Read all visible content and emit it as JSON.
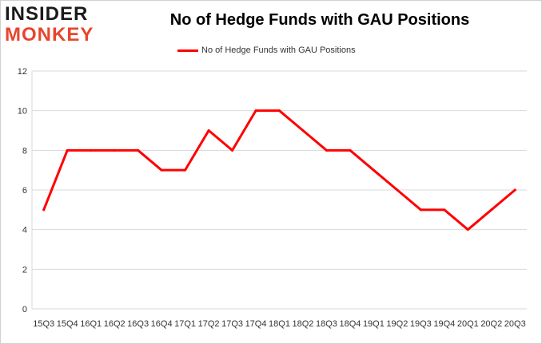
{
  "logo": {
    "line1": "INSIDER",
    "line2": "MONKEY"
  },
  "chart_data": {
    "type": "line",
    "title": "No of Hedge Funds with GAU Positions",
    "xlabel": "",
    "ylabel": "",
    "legend_position": "top-center",
    "grid": true,
    "ylim": [
      0,
      12
    ],
    "yticks": [
      0,
      2,
      4,
      6,
      8,
      10,
      12
    ],
    "categories": [
      "15Q3",
      "15Q4",
      "16Q1",
      "16Q2",
      "16Q3",
      "16Q4",
      "17Q1",
      "17Q2",
      "17Q3",
      "17Q4",
      "18Q1",
      "18Q2",
      "18Q3",
      "18Q4",
      "19Q1",
      "19Q2",
      "19Q3",
      "19Q4",
      "20Q1",
      "20Q2",
      "20Q3"
    ],
    "series": [
      {
        "name": "No of Hedge Funds with GAU Positions",
        "color": "#ff0000",
        "values": [
          5,
          8,
          8,
          8,
          8,
          7,
          7,
          9,
          8,
          10,
          10,
          9,
          8,
          8,
          7,
          6,
          5,
          5,
          4,
          5,
          6
        ]
      }
    ]
  }
}
